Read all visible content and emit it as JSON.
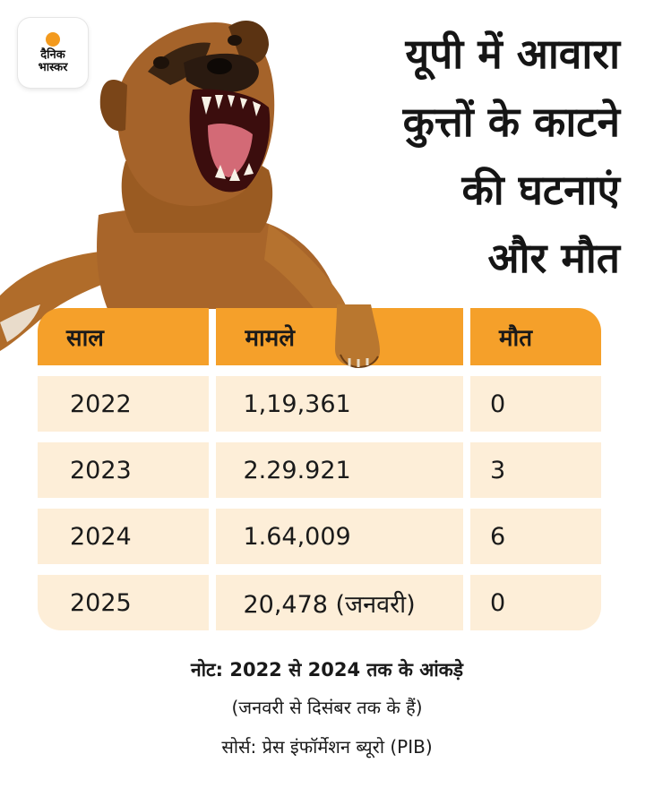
{
  "logo": {
    "line1": "दैनिक",
    "line2": "भास्कर"
  },
  "title": {
    "line1": "यूपी में आवारा",
    "line2": "कुत्तों के काटने",
    "line3": "की घटनाएं",
    "line4": "और मौत"
  },
  "table": {
    "headers": [
      "साल",
      "मामले",
      "मौत"
    ],
    "rows": [
      [
        "2022",
        "1,19,361",
        "0"
      ],
      [
        "2023",
        "2.29.921",
        "3"
      ],
      [
        "2024",
        "1.64,009",
        "6"
      ],
      [
        "2025",
        "20,478 (जनवरी)",
        "0"
      ]
    ]
  },
  "note": {
    "line1": "नोट: 2022 से 2024 तक के आंकड़े",
    "line2": "(जनवरी से दिसंबर तक के हैं)"
  },
  "source": "सोर्स: प्रेस इंफॉर्मेशन ब्यूरो (PIB)",
  "colors": {
    "header_bg": "#f5a02a",
    "cell_bg": "#fdeed8",
    "logo_dot": "#f39a1e"
  }
}
